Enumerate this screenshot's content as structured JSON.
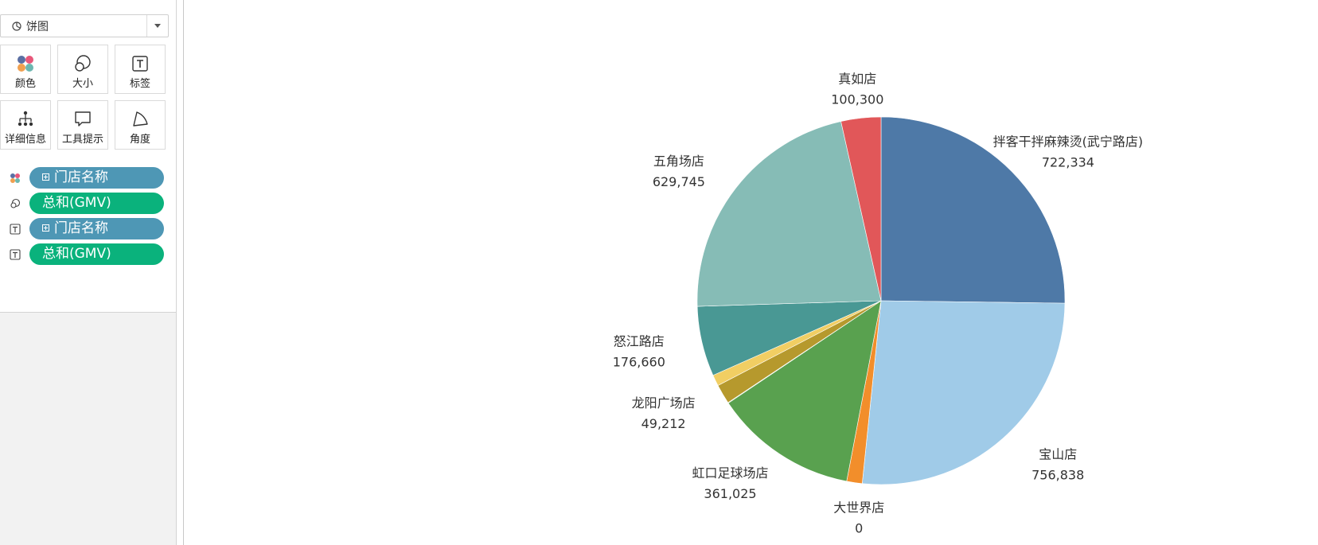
{
  "marks_card": {
    "mark_type": "饼图",
    "buttons": [
      "颜色",
      "大小",
      "标签",
      "详细信息",
      "工具提示",
      "角度"
    ],
    "shelf": [
      {
        "kind": "color-icon",
        "field": "门店名称",
        "type": "dimension"
      },
      {
        "kind": "size-icon",
        "field": "总和(GMV)",
        "type": "measure"
      },
      {
        "kind": "label-icon",
        "field": "门店名称",
        "type": "dimension"
      },
      {
        "kind": "label-icon",
        "field": "总和(GMV)",
        "type": "measure"
      }
    ]
  },
  "colors": {
    "dimension_pill": "#4e97b5",
    "measure_pill": "#0ab27c"
  },
  "chart_data": {
    "type": "pie",
    "start_angle_deg": 0,
    "direction": "clockwise",
    "slices": [
      {
        "label": "拌客干拌麻辣烫(武宁路店)",
        "value": 722334,
        "value_text": "722,334",
        "color": "#4e79a7"
      },
      {
        "label": "宝山店",
        "value": 756838,
        "value_text": "756,838",
        "color": "#a0cbe8"
      },
      {
        "label": "大世界店",
        "value": 0,
        "value_text": "0",
        "color": "#f28e2b"
      },
      {
        "label": "",
        "value": 39000,
        "value_text": "",
        "color": "#f28e2b"
      },
      {
        "label": "虹口足球场店",
        "value": 361025,
        "value_text": "361,025",
        "color": "#59a14f"
      },
      {
        "label": "",
        "value": 1500,
        "value_text": "",
        "color": "#8cd17d"
      },
      {
        "label": "龙阳广场店",
        "value": 49212,
        "value_text": "49,212",
        "color": "#b6992d"
      },
      {
        "label": "",
        "value": 28000,
        "value_text": "",
        "color": "#f1ce63"
      },
      {
        "label": "怒江路店",
        "value": 176660,
        "value_text": "176,660",
        "color": "#499894"
      },
      {
        "label": "五角场店",
        "value": 629745,
        "value_text": "629,745",
        "color": "#86bcb6"
      },
      {
        "label": "真如店",
        "value": 100300,
        "value_text": "100,300",
        "color": "#e15759"
      }
    ]
  }
}
